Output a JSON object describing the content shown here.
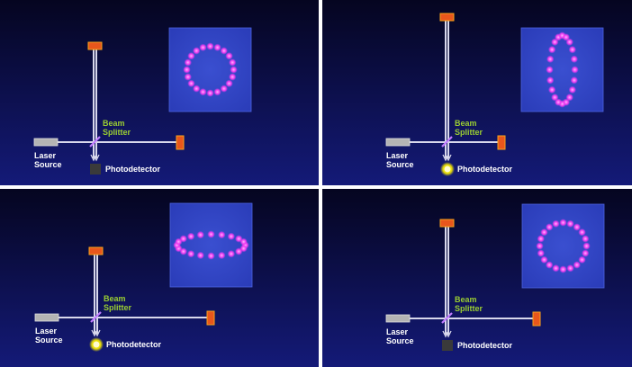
{
  "labels": {
    "beam_splitter": [
      "Beam",
      "Splitter"
    ],
    "laser_source": [
      "Laser",
      "Source"
    ],
    "photodetector": "Photodetector"
  },
  "colors": {
    "background_top": "#050520",
    "background_bottom": "#141a78",
    "beam": "#d8d8ec",
    "mirror": "#e8561c",
    "mirror_edge": "#f7a21b",
    "ring_box": "#2a3cb8",
    "ring_dot": "#ee3cf0",
    "detector_on": "#fff200",
    "detector_off": "#3a3a3a",
    "label_green": "#9acd32"
  },
  "panels": [
    {
      "ring_shape": "circle",
      "detector_state": "off",
      "top_mirror_length": "medium"
    },
    {
      "ring_shape": "vertical-ellipse",
      "detector_state": "on",
      "top_mirror_length": "long"
    },
    {
      "ring_shape": "horizontal-ellipse",
      "detector_state": "on",
      "top_mirror_length": "short"
    },
    {
      "ring_shape": "circle",
      "detector_state": "off",
      "top_mirror_length": "long"
    }
  ]
}
